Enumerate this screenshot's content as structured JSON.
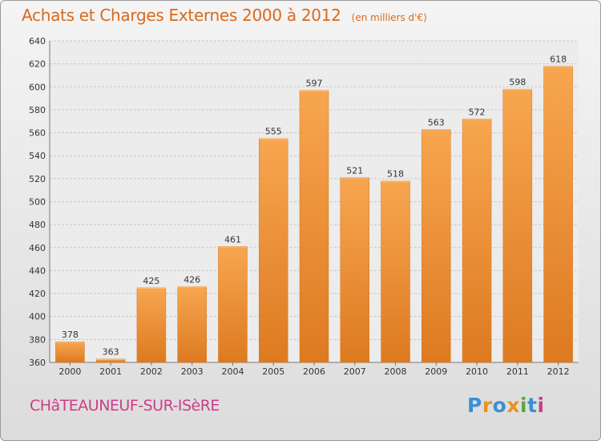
{
  "header": {
    "title": "Achats et Charges Externes 2000 à 2012",
    "subtitle": "(en milliers d'€)"
  },
  "footer": {
    "commune": "CHâTEAUNEUF-SUR-ISèRE",
    "logo": {
      "letters": [
        "P",
        "r",
        "o",
        "x",
        "i",
        "t",
        "i"
      ],
      "colors": [
        "#3a8fd6",
        "#e8931e",
        "#3a8fd6",
        "#e8931e",
        "#5aa83a",
        "#3a8fd6",
        "#cc3d86"
      ]
    }
  },
  "chart_data": {
    "type": "bar",
    "title": "Achats et Charges Externes 2000 à 2012",
    "subtitle": "(en milliers d'€)",
    "categories": [
      "2000",
      "2001",
      "2002",
      "2003",
      "2004",
      "2005",
      "2006",
      "2007",
      "2008",
      "2009",
      "2010",
      "2011",
      "2012"
    ],
    "values": [
      378,
      363,
      425,
      426,
      461,
      555,
      597,
      521,
      518,
      563,
      572,
      598,
      618
    ],
    "ylim": [
      360,
      640
    ],
    "yticks": [
      360,
      380,
      400,
      420,
      440,
      460,
      480,
      500,
      520,
      540,
      560,
      580,
      600,
      620,
      640
    ],
    "grid": true,
    "bar_color": "#f5a04a",
    "bar_color_dark": "#e07d22"
  }
}
